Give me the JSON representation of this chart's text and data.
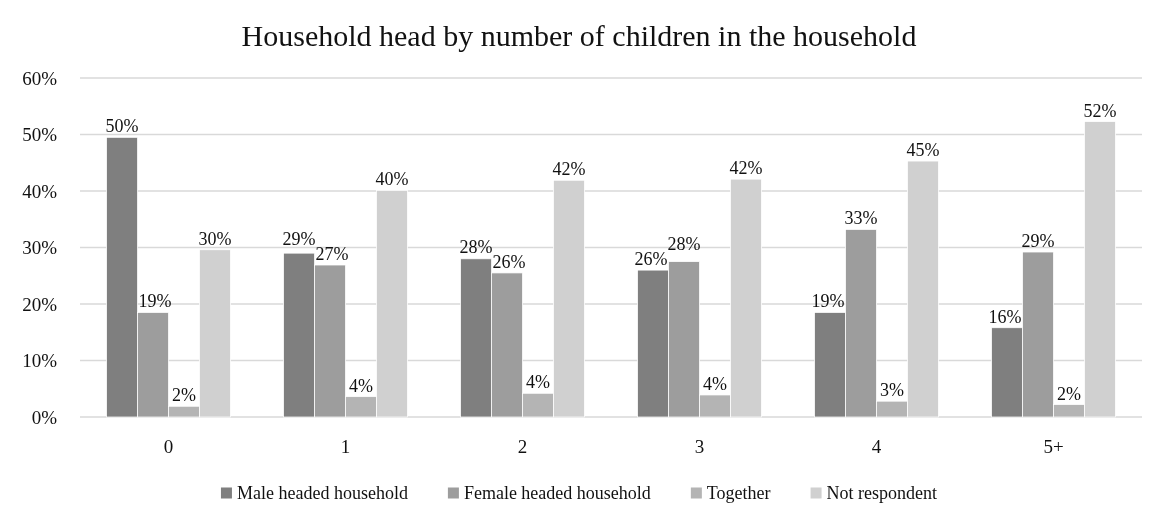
{
  "chart_data": {
    "type": "bar",
    "title": "Household head by number of children in the household",
    "categories": [
      "0",
      "1",
      "2",
      "3",
      "4",
      "5+"
    ],
    "series": [
      {
        "name": "Male headed household",
        "color": "#7f7f7f",
        "values": [
          49.5,
          29,
          28,
          26,
          18.5,
          15.8
        ],
        "value_labels": [
          "50%",
          "29%",
          "28%",
          "26%",
          "19%",
          "16%"
        ]
      },
      {
        "name": "Female headed household",
        "color": "#9d9d9d",
        "values": [
          18.5,
          26.9,
          25.5,
          27.5,
          33.2,
          29.2
        ],
        "value_labels": [
          "19%",
          "27%",
          "26%",
          "28%",
          "33%",
          "29%"
        ]
      },
      {
        "name": "Together",
        "color": "#b4b4b4",
        "values": [
          1.9,
          3.6,
          4.2,
          3.9,
          2.8,
          2.2
        ],
        "value_labels": [
          "2%",
          "4%",
          "4%",
          "4%",
          "3%",
          "2%"
        ]
      },
      {
        "name": "Not respondent",
        "color": "#d0d0d0",
        "values": [
          29.6,
          40.1,
          41.9,
          42.1,
          45.3,
          52.3
        ],
        "value_labels": [
          "30%",
          "40%",
          "42%",
          "42%",
          "45%",
          "52%"
        ]
      }
    ],
    "ylim": [
      0,
      60
    ],
    "yticks": [
      {
        "value": 0,
        "label": "0%"
      },
      {
        "value": 10,
        "label": "10%"
      },
      {
        "value": 20,
        "label": "20%"
      },
      {
        "value": 30,
        "label": "30%"
      },
      {
        "value": 40,
        "label": "40%"
      },
      {
        "value": 50,
        "label": "50%"
      },
      {
        "value": 60,
        "label": "60%"
      }
    ],
    "grid": "y",
    "legend": "bottom"
  }
}
